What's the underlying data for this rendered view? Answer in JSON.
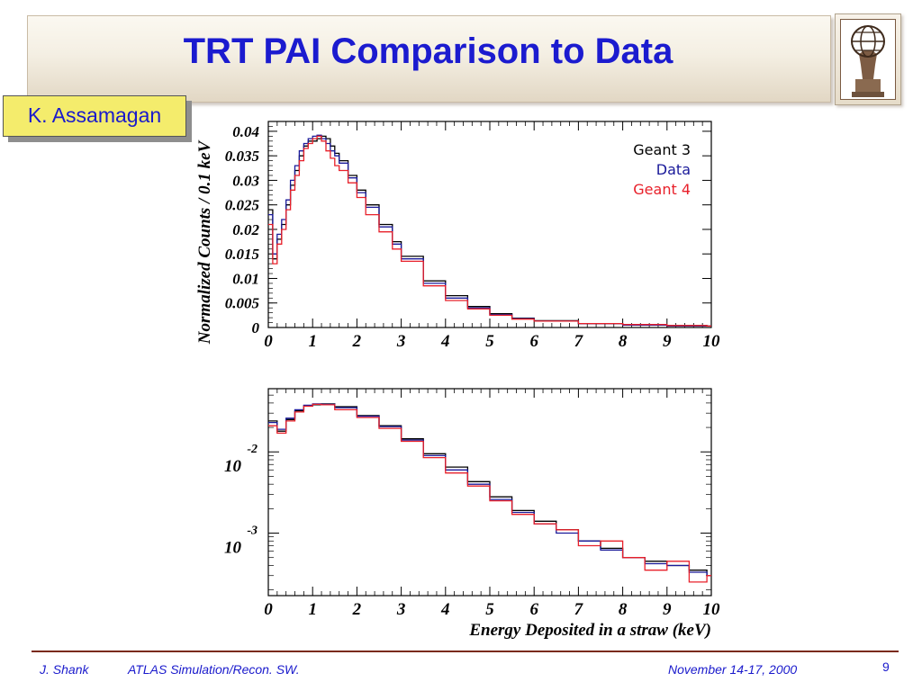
{
  "slide": {
    "title": "TRT PAI Comparison to Data",
    "author": "K. Assamagan",
    "footer_left": "J. Shank",
    "footer_middle": "ATLAS Simulation/Recon. SW.",
    "footer_date": "November  14-17, 2000",
    "page_number": "9",
    "logo_icon": "atlas-statue-logo-icon"
  },
  "chart_data": [
    {
      "type": "line",
      "ylabel": "Normalized Counts / 0.1 keV",
      "xlabel": "",
      "xlim": [
        0,
        10
      ],
      "ylim": [
        0,
        0.042
      ],
      "x_ticks": [
        "0",
        "1",
        "2",
        "3",
        "4",
        "5",
        "6",
        "7",
        "8",
        "9",
        "10"
      ],
      "y_ticks": [
        "0",
        "0.005",
        "0.01",
        "0.015",
        "0.02",
        "0.025",
        "0.03",
        "0.035",
        "0.04"
      ],
      "legend": {
        "placement": "top-right",
        "entries": [
          "Geant 3",
          "Data",
          "Geant 4"
        ]
      },
      "x": [
        0.0,
        0.1,
        0.2,
        0.3,
        0.4,
        0.5,
        0.6,
        0.7,
        0.8,
        0.9,
        1.0,
        1.1,
        1.2,
        1.3,
        1.4,
        1.5,
        1.6,
        1.8,
        2.0,
        2.2,
        2.5,
        2.8,
        3.0,
        3.5,
        4.0,
        4.5,
        5.0,
        5.5,
        6.0,
        7.0,
        8.0,
        9.0,
        9.9
      ],
      "series": [
        {
          "name": "Geant 3",
          "color": "#000000",
          "values": [
            0.024,
            0.014,
            0.018,
            0.021,
            0.025,
            0.029,
            0.032,
            0.035,
            0.037,
            0.038,
            0.038,
            0.0385,
            0.039,
            0.0385,
            0.037,
            0.0355,
            0.034,
            0.031,
            0.028,
            0.025,
            0.021,
            0.0175,
            0.0145,
            0.0095,
            0.0065,
            0.0043,
            0.0028,
            0.0019,
            0.0014,
            0.0008,
            0.0005,
            0.0004,
            0.0003
          ]
        },
        {
          "name": "Data",
          "color": "#1a1a9a",
          "values": [
            0.023,
            0.015,
            0.019,
            0.022,
            0.026,
            0.03,
            0.033,
            0.036,
            0.0375,
            0.0385,
            0.039,
            0.0392,
            0.0385,
            0.0375,
            0.036,
            0.035,
            0.0335,
            0.0305,
            0.0275,
            0.0245,
            0.0205,
            0.017,
            0.014,
            0.009,
            0.006,
            0.004,
            0.0026,
            0.0018,
            0.0013,
            0.0008,
            0.0005,
            0.0003,
            0.0003
          ]
        },
        {
          "name": "Geant 4",
          "color": "#e8202a",
          "values": [
            0.021,
            0.013,
            0.017,
            0.02,
            0.024,
            0.028,
            0.031,
            0.034,
            0.0365,
            0.0375,
            0.0385,
            0.039,
            0.038,
            0.036,
            0.0345,
            0.033,
            0.032,
            0.0295,
            0.0265,
            0.023,
            0.0195,
            0.016,
            0.0135,
            0.0085,
            0.0055,
            0.0038,
            0.0025,
            0.0017,
            0.0013,
            0.0008,
            0.0006,
            0.0004,
            0.0003
          ]
        }
      ]
    },
    {
      "type": "line",
      "log_y": true,
      "xlabel": "Energy Deposited in a straw (keV)",
      "ylabel": "",
      "xlim": [
        0,
        10
      ],
      "ylim": [
        0.00017,
        0.06
      ],
      "x_ticks": [
        "0",
        "1",
        "2",
        "3",
        "4",
        "5",
        "6",
        "7",
        "8",
        "9",
        "10"
      ],
      "y_ticks": [
        {
          "base": "10",
          "exp": "-2",
          "value": 0.01
        },
        {
          "base": "10",
          "exp": "-3",
          "value": 0.001
        }
      ],
      "x": [
        0.0,
        0.2,
        0.4,
        0.6,
        0.8,
        1.0,
        1.2,
        1.5,
        2.0,
        2.5,
        3.0,
        3.5,
        4.0,
        4.5,
        5.0,
        5.5,
        6.0,
        6.5,
        7.0,
        7.5,
        8.0,
        8.5,
        9.0,
        9.5,
        9.9
      ],
      "series": [
        {
          "name": "Geant 3",
          "color": "#000000",
          "values": [
            0.024,
            0.018,
            0.025,
            0.032,
            0.037,
            0.038,
            0.039,
            0.036,
            0.028,
            0.021,
            0.0145,
            0.0095,
            0.0065,
            0.0043,
            0.0028,
            0.0019,
            0.0014,
            0.0011,
            0.0008,
            0.00065,
            0.0005,
            0.00045,
            0.0004,
            0.00035,
            0.0003
          ]
        },
        {
          "name": "Data",
          "color": "#1a1a9a",
          "values": [
            0.023,
            0.019,
            0.026,
            0.033,
            0.0375,
            0.039,
            0.0385,
            0.035,
            0.0275,
            0.0205,
            0.014,
            0.009,
            0.006,
            0.004,
            0.0026,
            0.0018,
            0.0013,
            0.001,
            0.0008,
            0.00062,
            0.0005,
            0.00042,
            0.0004,
            0.00033,
            0.0003
          ]
        },
        {
          "name": "Geant 4",
          "color": "#e8202a",
          "values": [
            0.021,
            0.017,
            0.024,
            0.031,
            0.0365,
            0.0385,
            0.038,
            0.033,
            0.0265,
            0.0195,
            0.0135,
            0.0085,
            0.0055,
            0.0038,
            0.0025,
            0.0017,
            0.0013,
            0.0011,
            0.0007,
            0.0008,
            0.0005,
            0.00035,
            0.00045,
            0.00025,
            0.0003
          ]
        }
      ]
    }
  ]
}
